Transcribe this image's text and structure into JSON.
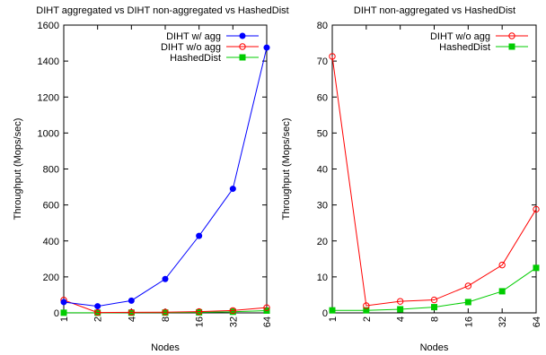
{
  "colors": {
    "series_blue": "#0000ff",
    "series_red": "#ff0000",
    "series_green": "#00cc00",
    "axis": "#000000"
  },
  "chart_data": [
    {
      "type": "line",
      "title": "DIHT aggregated vs DIHT non-aggregated vs HashedDist",
      "xlabel": "Nodes",
      "ylabel": "Throughput (Mops/sec)",
      "categories": [
        "1",
        "2",
        "4",
        "8",
        "16",
        "32",
        "64"
      ],
      "ylim": [
        0,
        1600
      ],
      "yticks": [
        "0",
        "200",
        "400",
        "600",
        "800",
        "1000",
        "1200",
        "1400",
        "1600"
      ],
      "grid": false,
      "legend": "top-right",
      "series": [
        {
          "name": "DIHT w/ agg",
          "color": "#0000ff",
          "marker": "filled-circle",
          "values": [
            60,
            37,
            68,
            188,
            428,
            690,
            1475
          ]
        },
        {
          "name": "DIHT w/o agg",
          "color": "#ff0000",
          "marker": "open-circle",
          "values": [
            71,
            2,
            3,
            4,
            7,
            13,
            29
          ]
        },
        {
          "name": "HashedDist",
          "color": "#00cc00",
          "marker": "filled-square",
          "values": [
            0.7,
            0.7,
            1,
            1.6,
            3,
            6,
            12.5
          ]
        }
      ]
    },
    {
      "type": "line",
      "title": "DIHT non-aggregated vs HashedDist",
      "xlabel": "Nodes",
      "ylabel": "Throughput (Mops/sec)",
      "categories": [
        "1",
        "2",
        "4",
        "8",
        "16",
        "32",
        "64"
      ],
      "ylim": [
        0,
        80
      ],
      "yticks": [
        "0",
        "10",
        "20",
        "30",
        "40",
        "50",
        "60",
        "70",
        "80"
      ],
      "grid": false,
      "legend": "top-right",
      "series": [
        {
          "name": "DIHT w/o agg",
          "color": "#ff0000",
          "marker": "open-circle",
          "values": [
            71.3,
            2,
            3.2,
            3.6,
            7.5,
            13.3,
            28.8
          ]
        },
        {
          "name": "HashedDist",
          "color": "#00cc00",
          "marker": "filled-square",
          "values": [
            0.7,
            0.7,
            1,
            1.6,
            3,
            6,
            12.5
          ]
        }
      ]
    }
  ]
}
